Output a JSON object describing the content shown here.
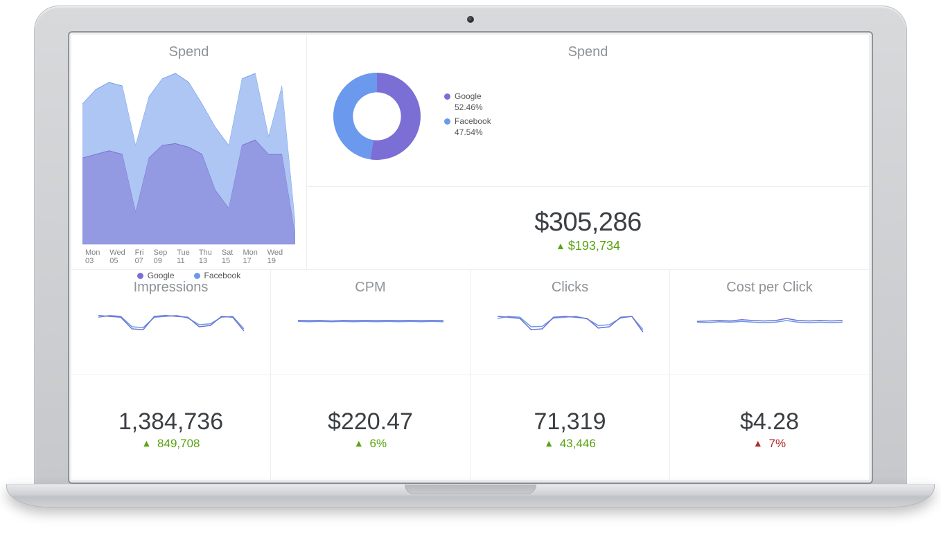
{
  "colors": {
    "google": "#7b6fd6",
    "facebook": "#6a99ed",
    "google_fill": "rgba(128,118,212,0.55)",
    "facebook_fill": "rgba(120,160,235,0.6)",
    "title": "#8d9398",
    "value_text": "#3b3f44",
    "delta_up": "#5aa20f",
    "delta_down": "#b02a2a",
    "card_border": "#eceef0",
    "background": "#ffffff",
    "axis_text": "#7c8288",
    "spark_line1": "#6d72cf",
    "spark_line2": "#6a99ed"
  },
  "typography": {
    "title_fontsize": 20,
    "bignum_fontsize": 38,
    "metric_fontsize": 34,
    "delta_fontsize": 18,
    "legend_fontsize": 12,
    "axis_fontsize": 11,
    "font_weight_value": 300
  },
  "donut": {
    "title": "Spend",
    "type": "donut",
    "inner_radius_ratio": 0.55,
    "slices": [
      {
        "name": "Google",
        "pct": 52.46,
        "color": "#7b6fd6"
      },
      {
        "name": "Facebook",
        "pct": 47.54,
        "color": "#6a99ed"
      }
    ],
    "legend": {
      "google_label": "Google",
      "google_pct": "52.46%",
      "facebook_label": "Facebook",
      "facebook_pct": "47.54%"
    }
  },
  "spend_total": {
    "value": "$305,286",
    "delta": "$193,734",
    "delta_direction": "up"
  },
  "area": {
    "title": "Spend",
    "type": "area",
    "x_labels": [
      "Mon 03",
      "Wed 05",
      "Fri 07",
      "Sep 09",
      "Tue 11",
      "Thu 13",
      "Sat 15",
      "Mon 17",
      "Wed 19"
    ],
    "ylim": [
      0,
      100
    ],
    "series": [
      {
        "name": "Google",
        "color": "#7b6fd6",
        "fill": "rgba(128,118,212,0.55)",
        "values": [
          48,
          50,
          52,
          50,
          18,
          48,
          55,
          56,
          54,
          50,
          30,
          20,
          55,
          58,
          50,
          50,
          5
        ]
      },
      {
        "name": "Facebook",
        "color": "#6a99ed",
        "fill": "rgba(120,160,235,0.6)",
        "values": [
          78,
          86,
          90,
          88,
          55,
          82,
          92,
          95,
          90,
          78,
          65,
          55,
          92,
          95,
          60,
          88,
          12
        ]
      }
    ],
    "legend": {
      "google": "Google",
      "facebook": "Facebook"
    }
  },
  "metrics": [
    {
      "title": "Impressions",
      "value": "1,384,736",
      "delta": "849,708",
      "delta_direction": "up",
      "spark": {
        "type": "line",
        "series1_color": "#6d72cf",
        "series2_color": "#6a99ed",
        "series1": [
          62,
          60,
          58,
          30,
          28,
          60,
          62,
          60,
          58,
          35,
          38,
          60,
          58,
          25
        ],
        "series2": [
          58,
          62,
          60,
          35,
          33,
          58,
          60,
          62,
          56,
          40,
          42,
          58,
          60,
          30
        ]
      }
    },
    {
      "title": "CPM",
      "value": "$220.47",
      "delta": "6%",
      "delta_direction": "up",
      "spark": {
        "type": "line",
        "series1_color": "#6d72cf",
        "series2_color": "#6a99ed",
        "series1": [
          50,
          50,
          50,
          49,
          50,
          50,
          50,
          50,
          50,
          50,
          50,
          50,
          50,
          50
        ],
        "series2": [
          48,
          47,
          48,
          47,
          48,
          47,
          48,
          47,
          48,
          47,
          48,
          47,
          48,
          47
        ]
      }
    },
    {
      "title": "Clicks",
      "value": "71,319",
      "delta": "43,446",
      "delta_direction": "up",
      "spark": {
        "type": "line",
        "series1_color": "#6d72cf",
        "series2_color": "#6a99ed",
        "series1": [
          60,
          58,
          55,
          28,
          30,
          58,
          60,
          58,
          55,
          32,
          35,
          58,
          60,
          22
        ],
        "series2": [
          55,
          60,
          58,
          35,
          36,
          56,
          58,
          60,
          54,
          38,
          40,
          56,
          60,
          28
        ]
      }
    },
    {
      "title": "Cost per Click",
      "value": "$4.28",
      "delta": "7%",
      "delta_direction": "down",
      "spark": {
        "type": "line",
        "series1_color": "#6d72cf",
        "series2_color": "#6a99ed",
        "series1": [
          48,
          49,
          50,
          49,
          52,
          50,
          49,
          50,
          55,
          50,
          49,
          50,
          49,
          50
        ],
        "series2": [
          46,
          45,
          47,
          46,
          48,
          46,
          45,
          46,
          50,
          46,
          45,
          46,
          45,
          46
        ]
      }
    }
  ]
}
